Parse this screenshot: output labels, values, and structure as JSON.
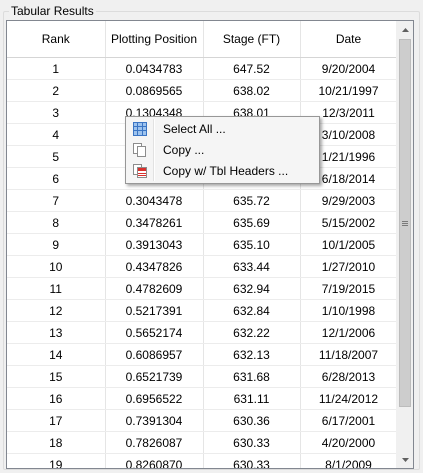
{
  "group": {
    "title": "Tabular Results"
  },
  "columns": [
    {
      "label": "Rank"
    },
    {
      "label": "Plotting Position"
    },
    {
      "label": "Stage (FT)"
    },
    {
      "label": "Date"
    }
  ],
  "rows": [
    [
      "1",
      "0.0434783",
      "647.52",
      "9/20/2004"
    ],
    [
      "2",
      "0.0869565",
      "638.02",
      "10/21/1997"
    ],
    [
      "3",
      "0.1304348",
      "638.01",
      "12/3/2011"
    ],
    [
      "4",
      "",
      "",
      "3/10/2008"
    ],
    [
      "5",
      "",
      "",
      "1/21/1996"
    ],
    [
      "6",
      "",
      "",
      "6/18/2014"
    ],
    [
      "7",
      "0.3043478",
      "635.72",
      "9/29/2003"
    ],
    [
      "8",
      "0.3478261",
      "635.69",
      "5/15/2002"
    ],
    [
      "9",
      "0.3913043",
      "635.10",
      "10/1/2005"
    ],
    [
      "10",
      "0.4347826",
      "633.44",
      "1/27/2010"
    ],
    [
      "11",
      "0.4782609",
      "632.94",
      "7/19/2015"
    ],
    [
      "12",
      "0.5217391",
      "632.84",
      "1/10/1998"
    ],
    [
      "13",
      "0.5652174",
      "632.22",
      "12/1/2006"
    ],
    [
      "14",
      "0.6086957",
      "632.13",
      "11/18/2007"
    ],
    [
      "15",
      "0.6521739",
      "631.68",
      "6/28/2013"
    ],
    [
      "16",
      "0.6956522",
      "631.11",
      "11/24/2012"
    ],
    [
      "17",
      "0.7391304",
      "630.36",
      "6/17/2001"
    ],
    [
      "18",
      "0.7826087",
      "630.33",
      "4/20/2000"
    ],
    [
      "19",
      "0.8260870",
      "630.33",
      "8/1/2009"
    ]
  ],
  "context_menu": {
    "items": [
      {
        "label": "Select All ...",
        "icon": "select-all-icon"
      },
      {
        "label": "Copy ...",
        "icon": "copy-icon"
      },
      {
        "label": "Copy w/ Tbl Headers ...",
        "icon": "copy-table-icon"
      }
    ]
  },
  "colors": {
    "background": "#f0f0f0",
    "grid_border": "#828790",
    "menu_background": "#f5f5f5"
  }
}
